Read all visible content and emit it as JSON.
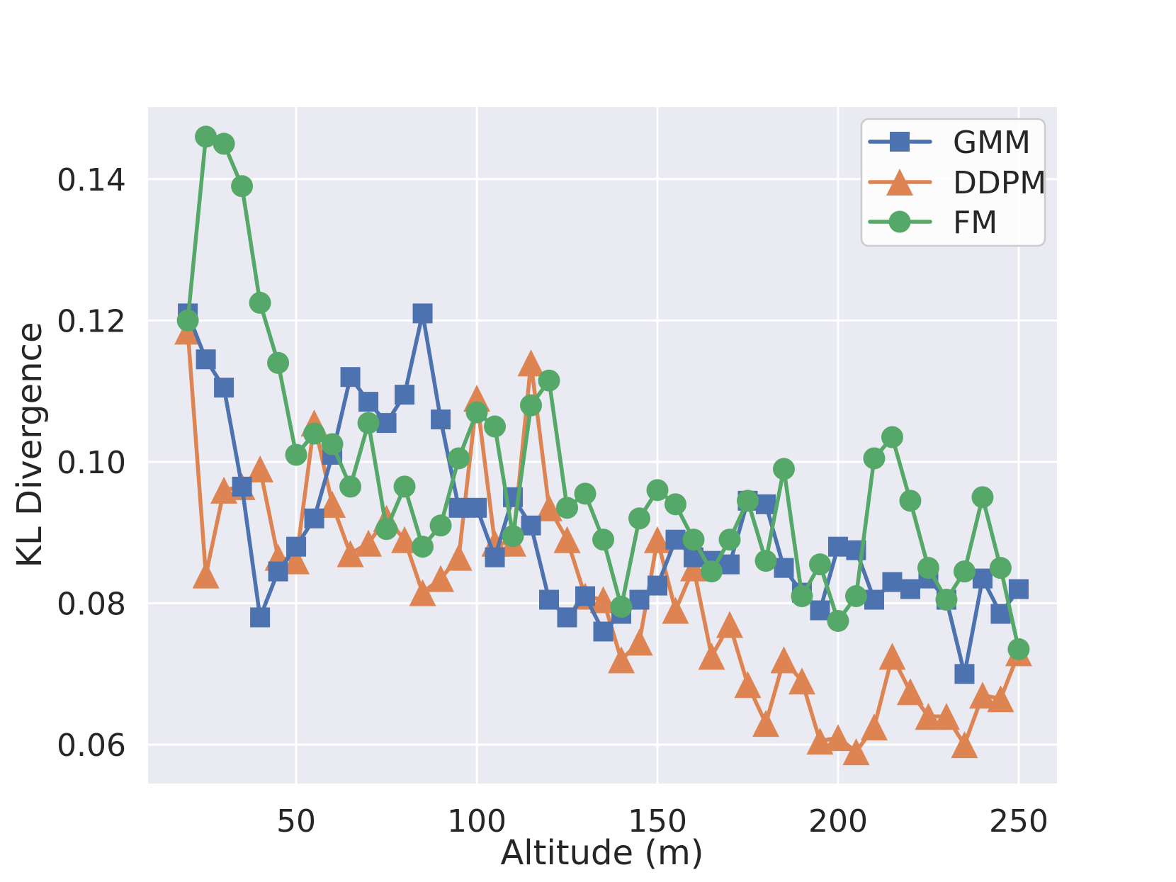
{
  "chart_data": {
    "type": "line",
    "title": "",
    "xlabel": "Altitude (m)",
    "ylabel": "KL Divergence",
    "x": [
      20,
      25,
      30,
      35,
      40,
      45,
      50,
      55,
      60,
      65,
      70,
      75,
      80,
      85,
      90,
      95,
      100,
      105,
      110,
      115,
      120,
      125,
      130,
      135,
      140,
      145,
      150,
      155,
      160,
      165,
      170,
      175,
      180,
      185,
      190,
      195,
      200,
      205,
      210,
      215,
      220,
      225,
      230,
      235,
      240,
      245,
      250
    ],
    "series": [
      {
        "name": "GMM",
        "marker": "square",
        "color": "#4C72B0",
        "values": [
          0.121,
          0.1145,
          0.1105,
          0.0965,
          0.078,
          0.0845,
          0.088,
          0.092,
          0.101,
          0.112,
          0.1085,
          0.1055,
          0.1095,
          0.121,
          0.106,
          0.0935,
          0.0935,
          0.0865,
          0.095,
          0.091,
          0.0805,
          0.078,
          0.081,
          0.076,
          0.0785,
          0.0805,
          0.0825,
          0.089,
          0.0865,
          0.086,
          0.0855,
          0.0945,
          0.094,
          0.085,
          0.0815,
          0.079,
          0.088,
          0.0875,
          0.0805,
          0.083,
          0.082,
          0.0835,
          0.0805,
          0.07,
          0.0835,
          0.0785,
          0.082
        ]
      },
      {
        "name": "DDPM",
        "marker": "triangle",
        "color": "#DD8452",
        "values": [
          0.1185,
          0.084,
          0.096,
          0.0965,
          0.099,
          0.0865,
          0.086,
          0.1055,
          0.094,
          0.087,
          0.0885,
          0.092,
          0.089,
          0.0815,
          0.0835,
          0.0865,
          0.109,
          0.0885,
          0.0885,
          0.114,
          0.0935,
          0.089,
          0.081,
          0.0805,
          0.072,
          0.0745,
          0.089,
          0.079,
          0.085,
          0.0725,
          0.077,
          0.0685,
          0.063,
          0.072,
          0.069,
          0.0605,
          0.061,
          0.059,
          0.0625,
          0.0725,
          0.0675,
          0.064,
          0.064,
          0.06,
          0.067,
          0.0665,
          0.073
        ]
      },
      {
        "name": "FM",
        "marker": "circle",
        "color": "#55A868",
        "values": [
          0.12,
          0.146,
          0.145,
          0.139,
          0.1225,
          0.114,
          0.101,
          0.104,
          0.1025,
          0.0965,
          0.1055,
          0.0905,
          0.0965,
          0.088,
          0.091,
          0.1005,
          0.107,
          0.105,
          0.0895,
          0.108,
          0.1115,
          0.0935,
          0.0955,
          0.089,
          0.0795,
          0.092,
          0.096,
          0.094,
          0.089,
          0.0845,
          0.089,
          0.0945,
          0.086,
          0.099,
          0.081,
          0.0855,
          0.0775,
          0.081,
          0.1005,
          0.1035,
          0.0945,
          0.085,
          0.0805,
          0.0845,
          0.095,
          0.085,
          0.0735
        ]
      }
    ],
    "draw_order": [
      "DDPM",
      "GMM",
      "FM"
    ],
    "legend": {
      "position": "upper right",
      "entries": [
        "GMM",
        "DDPM",
        "FM"
      ]
    },
    "xticks": [
      {
        "value": 50,
        "label": "50"
      },
      {
        "value": 100,
        "label": "100"
      },
      {
        "value": 150,
        "label": "150"
      },
      {
        "value": 200,
        "label": "200"
      },
      {
        "value": 250,
        "label": "250"
      }
    ],
    "yticks": [
      {
        "value": 0.06,
        "label": "0.06"
      },
      {
        "value": 0.08,
        "label": "0.08"
      },
      {
        "value": 0.1,
        "label": "0.10"
      },
      {
        "value": 0.12,
        "label": "0.12"
      },
      {
        "value": 0.14,
        "label": "0.14"
      }
    ],
    "xlim": [
      9.0,
      260.6
    ],
    "ylim": [
      0.0545,
      0.1502
    ],
    "grid": true,
    "style": {
      "plot_bg": "#EAEAF2",
      "grid_color": "#FFFFFF",
      "text_color": "#262626",
      "legend_bg": "rgba(255,255,255,0.85)",
      "legend_border": "#CCCCCC",
      "figure_bg": "#FFFFFF"
    }
  }
}
